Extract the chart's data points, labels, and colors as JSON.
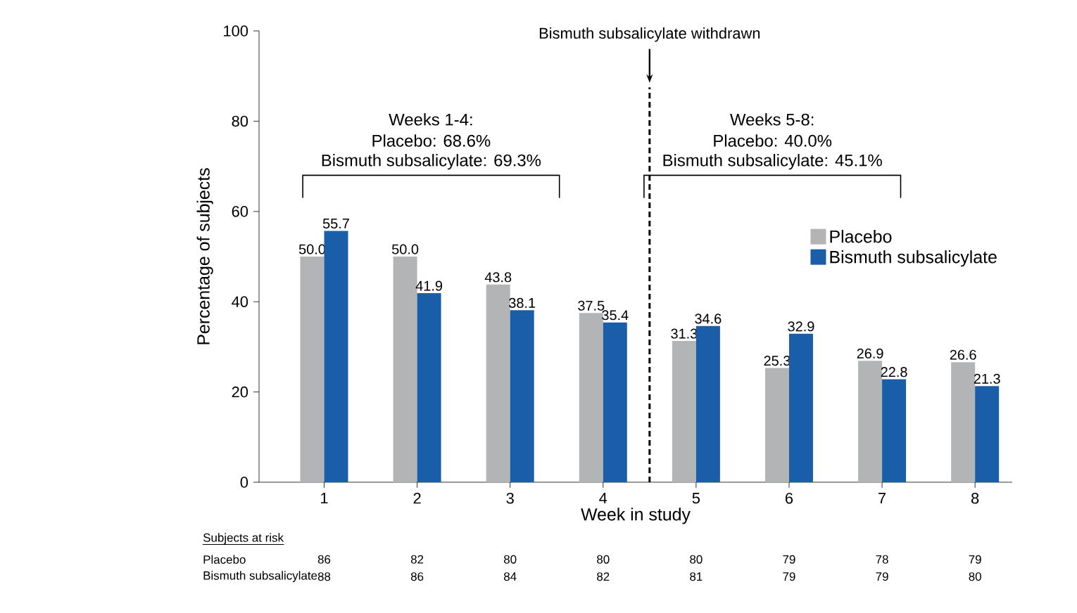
{
  "chart_data": {
    "type": "bar",
    "xlabel": "Week in study",
    "ylabel": "Percentage of subjects",
    "x": [
      1,
      2,
      3,
      4,
      5,
      6,
      7,
      8
    ],
    "xlim": [
      0.3,
      8.4
    ],
    "xticks": [
      1,
      2,
      3,
      4,
      5,
      6,
      7,
      8
    ],
    "ylim": [
      0,
      100
    ],
    "yticks": [
      0,
      20,
      40,
      60,
      80,
      100
    ],
    "legend": "right",
    "series": [
      {
        "name": "Placebo",
        "color": "#b3b4b6",
        "values": [
          50.0,
          50.0,
          43.8,
          37.5,
          31.3,
          25.3,
          26.9,
          26.6
        ],
        "value_labels": [
          "50.0",
          "50.0",
          "43.8",
          "37.5",
          "31.3",
          "25.3",
          "26.9",
          "26.6"
        ]
      },
      {
        "name": "Bismuth subsalicylate",
        "color": "#1a5ea9",
        "values": [
          55.7,
          41.9,
          38.1,
          35.4,
          34.6,
          32.9,
          22.8,
          21.3
        ],
        "value_labels": [
          "55.7",
          "41.9",
          "38.1",
          "35.4",
          "34.6",
          "32.9",
          "22.8",
          "21.3"
        ]
      }
    ],
    "ref_lines": [
      {
        "axis": "x",
        "value": 4.5,
        "label": "Bismuth subsalicylate withdrawn",
        "line_style": "dashed",
        "color": "#000000"
      }
    ],
    "annotations": [
      "Weeks 1-4:",
      "Placebo: 68.6%",
      "Bismuth subsalicylate: 69.3%",
      "Weeks 5-8:",
      "Placebo: 40.0%",
      "Bismuth subsalicylate: 45.1%",
      "Subjects at risk",
      "Placebo",
      "86",
      "82",
      "80",
      "80",
      "80",
      "79",
      "78",
      "79",
      "Bismuth subsalicylate",
      "88",
      "86",
      "84",
      "82",
      "81",
      "79",
      "79",
      "80"
    ]
  }
}
